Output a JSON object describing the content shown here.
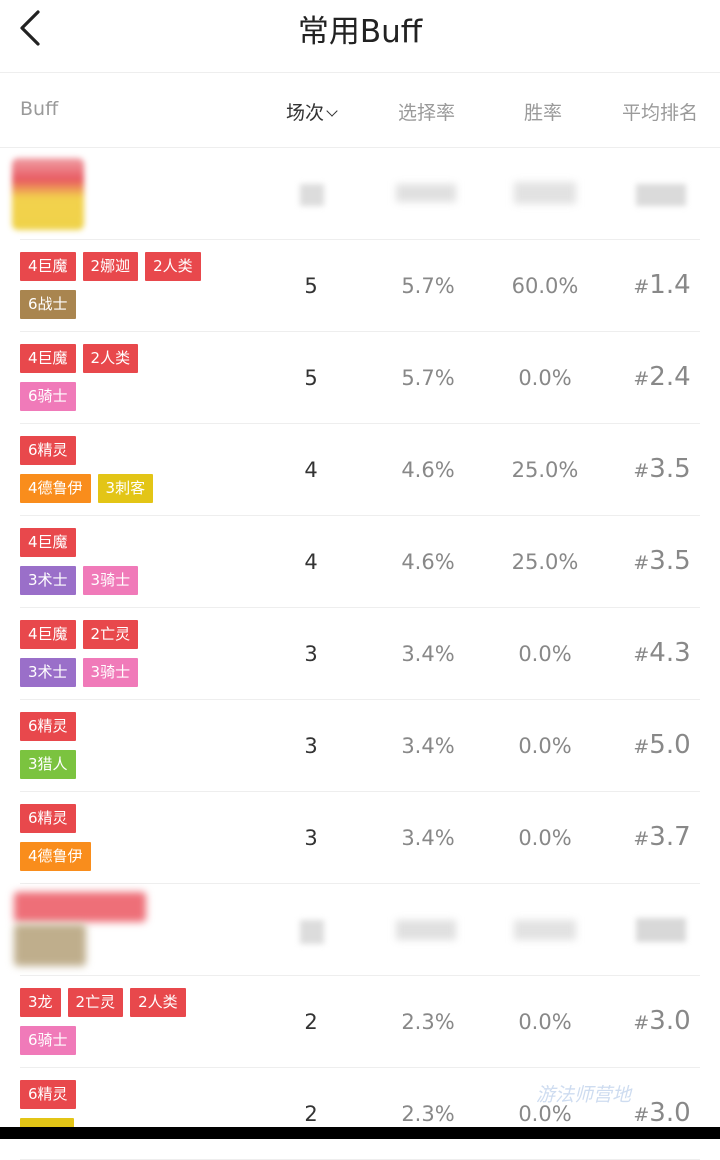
{
  "header": {
    "title": "常用Buff"
  },
  "columns": {
    "buff": "Buff",
    "count": "场次",
    "pick_rate": "选择率",
    "win_rate": "胜率",
    "avg_rank": "平均排名"
  },
  "colors": {
    "red": "#e8484c",
    "brown": "#a9854f",
    "pink": "#f07ab9",
    "orange": "#f98d1c",
    "yellow": "#e3c516",
    "purple": "#9a6fc9",
    "green": "#7bc33f"
  },
  "rank_prefix": "#",
  "rows": [
    {
      "type": "data",
      "tags": [
        [
          {
            "text": "4巨魔",
            "color": "red"
          },
          {
            "text": "2娜迦",
            "color": "red"
          },
          {
            "text": "2人类",
            "color": "red"
          }
        ],
        [
          {
            "text": "6战士",
            "color": "brown"
          }
        ]
      ],
      "count": "5",
      "pick": "5.7%",
      "win": "60.0%",
      "rank": "1.4"
    },
    {
      "type": "data",
      "tags": [
        [
          {
            "text": "4巨魔",
            "color": "red"
          },
          {
            "text": "2人类",
            "color": "red"
          }
        ],
        [
          {
            "text": "6骑士",
            "color": "pink"
          }
        ]
      ],
      "count": "5",
      "pick": "5.7%",
      "win": "0.0%",
      "rank": "2.4"
    },
    {
      "type": "data",
      "tags": [
        [
          {
            "text": "6精灵",
            "color": "red"
          }
        ],
        [
          {
            "text": "4德鲁伊",
            "color": "orange"
          },
          {
            "text": "3刺客",
            "color": "yellow"
          }
        ]
      ],
      "count": "4",
      "pick": "4.6%",
      "win": "25.0%",
      "rank": "3.5"
    },
    {
      "type": "data",
      "tags": [
        [
          {
            "text": "4巨魔",
            "color": "red"
          }
        ],
        [
          {
            "text": "3术士",
            "color": "purple"
          },
          {
            "text": "3骑士",
            "color": "pink"
          }
        ]
      ],
      "count": "4",
      "pick": "4.6%",
      "win": "25.0%",
      "rank": "3.5"
    },
    {
      "type": "data",
      "tags": [
        [
          {
            "text": "4巨魔",
            "color": "red"
          },
          {
            "text": "2亡灵",
            "color": "red"
          }
        ],
        [
          {
            "text": "3术士",
            "color": "purple"
          },
          {
            "text": "3骑士",
            "color": "pink"
          }
        ]
      ],
      "count": "3",
      "pick": "3.4%",
      "win": "0.0%",
      "rank": "4.3"
    },
    {
      "type": "data",
      "tags": [
        [
          {
            "text": "6精灵",
            "color": "red"
          }
        ],
        [
          {
            "text": "3猎人",
            "color": "green"
          }
        ]
      ],
      "count": "3",
      "pick": "3.4%",
      "win": "0.0%",
      "rank": "5.0"
    },
    {
      "type": "data",
      "tags": [
        [
          {
            "text": "6精灵",
            "color": "red"
          }
        ],
        [
          {
            "text": "4德鲁伊",
            "color": "orange"
          }
        ]
      ],
      "count": "3",
      "pick": "3.4%",
      "win": "0.0%",
      "rank": "3.7"
    },
    {
      "type": "data",
      "tags": [
        [
          {
            "text": "3龙",
            "color": "red"
          },
          {
            "text": "2亡灵",
            "color": "red"
          },
          {
            "text": "2人类",
            "color": "red"
          }
        ],
        [
          {
            "text": "6骑士",
            "color": "pink"
          }
        ]
      ],
      "count": "2",
      "pick": "2.3%",
      "win": "0.0%",
      "rank": "3.0"
    },
    {
      "type": "data",
      "tags": [
        [
          {
            "text": "6精灵",
            "color": "red"
          }
        ],
        [
          {
            "text": "",
            "color": "yellow"
          }
        ]
      ],
      "count": "2",
      "pick": "2.3%",
      "win": "0.0%",
      "rank": "3.0"
    }
  ],
  "watermark": "游法师营地"
}
